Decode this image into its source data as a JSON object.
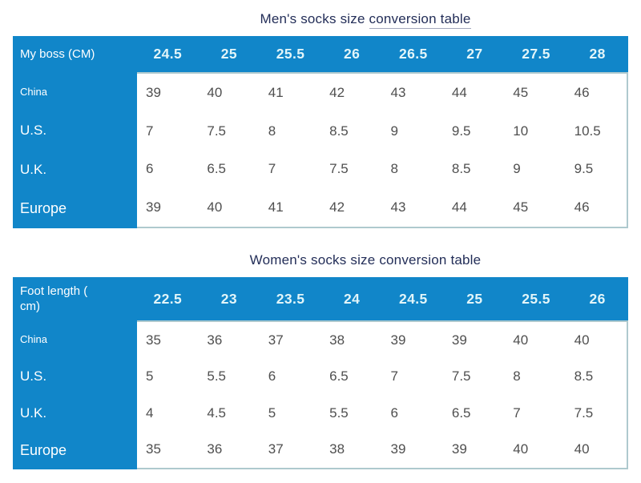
{
  "colors": {
    "table_blue": "#1186c9",
    "title_navy": "#232e58",
    "data_text": "#4f4f4f",
    "header_number_text": "#e2f5f9",
    "table_border": "#aec9ce",
    "row_label_text": "#ffffff",
    "page_background": "#ffffff"
  },
  "tables": [
    {
      "id": "mens",
      "title": "Men's socks size conversion table",
      "title_start": "Men's socks size ",
      "title_end": "conversion table",
      "underline_end": true,
      "corner_label": "My boss (CM)",
      "sizes": [
        "24.5",
        "25",
        "25.5",
        "26",
        "26.5",
        "27",
        "27.5",
        "28"
      ],
      "rows": [
        {
          "label": "China",
          "values": [
            "39",
            "40",
            "41",
            "42",
            "43",
            "44",
            "45",
            "46"
          ]
        },
        {
          "label": "U.S.",
          "values": [
            "7",
            "7.5",
            "8",
            "8.5",
            "9",
            "9.5",
            "10",
            "10.5"
          ]
        },
        {
          "label": "U.K.",
          "values": [
            "6",
            "6.5",
            "7",
            "7.5",
            "8",
            "8.5",
            "9",
            "9.5"
          ]
        },
        {
          "label": "Europe",
          "values": [
            "39",
            "40",
            "41",
            "42",
            "43",
            "44",
            "45",
            "46"
          ]
        }
      ]
    },
    {
      "id": "womens",
      "title": "Women's socks size conversion table",
      "title_start": "Women's socks size conversion table",
      "title_end": "",
      "underline_end": false,
      "corner_label": "Foot length ( cm)",
      "sizes": [
        "22.5",
        "23",
        "23.5",
        "24",
        "24.5",
        "25",
        "25.5",
        "26"
      ],
      "rows": [
        {
          "label": "China",
          "values": [
            "35",
            "36",
            "37",
            "38",
            "39",
            "39",
            "40",
            "40"
          ]
        },
        {
          "label": "U.S.",
          "values": [
            "5",
            "5.5",
            "6",
            "6.5",
            "7",
            "7.5",
            "8",
            "8.5"
          ]
        },
        {
          "label": "U.K.",
          "values": [
            "4",
            "4.5",
            "5",
            "5.5",
            "6",
            "6.5",
            "7",
            "7.5"
          ]
        },
        {
          "label": "Europe",
          "values": [
            "35",
            "36",
            "37",
            "38",
            "39",
            "39",
            "40",
            "40"
          ]
        }
      ]
    }
  ],
  "chart_data": [
    {
      "type": "table",
      "title": "Men's socks size conversion table",
      "columns": [
        "My boss (CM)",
        "24.5",
        "25",
        "25.5",
        "26",
        "26.5",
        "27",
        "27.5",
        "28"
      ],
      "rows": [
        [
          "China",
          "39",
          "40",
          "41",
          "42",
          "43",
          "44",
          "45",
          "46"
        ],
        [
          "U.S.",
          "7",
          "7.5",
          "8",
          "8.5",
          "9",
          "9.5",
          "10",
          "10.5"
        ],
        [
          "U.K.",
          "6",
          "6.5",
          "7",
          "7.5",
          "8",
          "8.5",
          "9",
          "9.5"
        ],
        [
          "Europe",
          "39",
          "40",
          "41",
          "42",
          "43",
          "44",
          "45",
          "46"
        ]
      ]
    },
    {
      "type": "table",
      "title": "Women's socks size conversion table",
      "columns": [
        "Foot length ( cm)",
        "22.5",
        "23",
        "23.5",
        "24",
        "24.5",
        "25",
        "25.5",
        "26"
      ],
      "rows": [
        [
          "China",
          "35",
          "36",
          "37",
          "38",
          "39",
          "39",
          "40",
          "40"
        ],
        [
          "U.S.",
          "5",
          "5.5",
          "6",
          "6.5",
          "7",
          "7.5",
          "8",
          "8.5"
        ],
        [
          "U.K.",
          "4",
          "4.5",
          "5",
          "5.5",
          "6",
          "6.5",
          "7",
          "7.5"
        ],
        [
          "Europe",
          "35",
          "36",
          "37",
          "38",
          "39",
          "39",
          "40",
          "40"
        ]
      ]
    }
  ]
}
